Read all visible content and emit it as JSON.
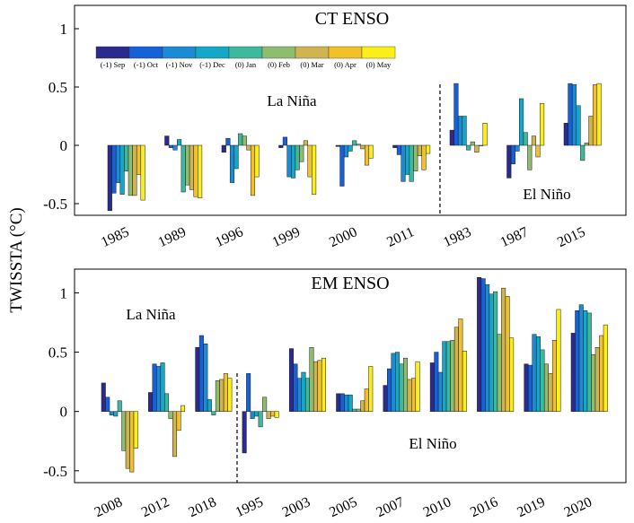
{
  "ylabel": "TWISSTA (°C)",
  "legend": {
    "labels": [
      "(-1) Sep",
      "(-1) Oct",
      "(-1) Nov",
      "(-1) Dec",
      "(0) Jan",
      "(0) Feb",
      "(0) Mar",
      "(0) Apr",
      "(0) May"
    ]
  },
  "colors": [
    "#2b2a8e",
    "#1660d8",
    "#1b8bd6",
    "#13a8c8",
    "#3fb99e",
    "#8fbd6e",
    "#d0b452",
    "#f2c12a",
    "#fbef1a"
  ],
  "chart_data": [
    {
      "type": "bar",
      "title": "CT ENSO",
      "ylabel": "TWISSTA (°C)",
      "ylim": [
        -0.6,
        1.2
      ],
      "yticks": [
        -0.5,
        0,
        0.5,
        1
      ],
      "ytick_labels": [
        "-0.5",
        "0",
        "0.5",
        "1"
      ],
      "categories": [
        "1985",
        "1989",
        "1996",
        "1999",
        "2000",
        "2011",
        "1983",
        "1987",
        "2015"
      ],
      "annotations": [
        "La Niña",
        "El Niño"
      ],
      "divider_after_index": 5,
      "grid": false,
      "legend_position": "top",
      "series": [
        {
          "name": "(-1) Sep",
          "values": [
            -0.56,
            0.08,
            -0.06,
            -0.02,
            -0.01,
            -0.02,
            0.13,
            -0.28,
            0.19
          ]
        },
        {
          "name": "(-1) Oct",
          "values": [
            -0.41,
            -0.02,
            0.06,
            0.07,
            -0.35,
            -0.08,
            0.53,
            -0.16,
            0.53
          ]
        },
        {
          "name": "(-1) Nov",
          "values": [
            -0.32,
            -0.04,
            -0.32,
            -0.27,
            -0.1,
            -0.31,
            0.25,
            -0.05,
            0.52
          ]
        },
        {
          "name": "(-1) Dec",
          "values": [
            -0.42,
            0.05,
            -0.2,
            -0.28,
            -0.05,
            -0.25,
            0.25,
            0.4,
            0.34
          ]
        },
        {
          "name": "(0) Jan",
          "values": [
            -0.22,
            -0.4,
            0.1,
            -0.21,
            0.04,
            -0.31,
            -0.04,
            0.11,
            -0.13
          ]
        },
        {
          "name": "(0) Feb",
          "values": [
            -0.43,
            -0.34,
            0.08,
            -0.14,
            0.01,
            -0.22,
            0.03,
            -0.21,
            0.02
          ]
        },
        {
          "name": "(0) Mar",
          "values": [
            -0.43,
            -0.38,
            -0.04,
            0.04,
            -0.03,
            -0.09,
            -0.06,
            0.08,
            0.25
          ]
        },
        {
          "name": "(0) Apr",
          "values": [
            -0.25,
            -0.44,
            -0.43,
            -0.27,
            -0.17,
            -0.21,
            0.0,
            -0.1,
            0.52
          ]
        },
        {
          "name": "(0) May",
          "values": [
            -0.47,
            -0.45,
            -0.27,
            -0.42,
            -0.11,
            -0.07,
            0.19,
            0.36,
            0.53
          ]
        }
      ]
    },
    {
      "type": "bar",
      "title": "EM ENSO",
      "ylim": [
        -0.6,
        1.2
      ],
      "yticks": [
        -0.5,
        0,
        0.5,
        1
      ],
      "ytick_labels": [
        "-0.5",
        "0",
        "0.5",
        "1"
      ],
      "categories": [
        "2008",
        "2012",
        "2018",
        "1995",
        "2003",
        "2005",
        "2007",
        "2010",
        "2016",
        "2019",
        "2020"
      ],
      "annotations": [
        "La Niña",
        "El Niño"
      ],
      "divider_after_index": 2,
      "grid": false,
      "series": [
        {
          "name": "(-1) Sep",
          "values": [
            0.24,
            0.16,
            0.54,
            -0.35,
            0.53,
            0.15,
            0.22,
            0.41,
            1.13,
            0.4,
            0.66
          ]
        },
        {
          "name": "(-1) Oct",
          "values": [
            0.12,
            0.4,
            0.64,
            0.32,
            0.4,
            0.15,
            0.36,
            0.5,
            1.12,
            0.39,
            0.85
          ]
        },
        {
          "name": "(-1) Nov",
          "values": [
            -0.03,
            0.38,
            0.57,
            -0.06,
            0.28,
            0.14,
            0.49,
            0.33,
            1.07,
            0.65,
            0.9
          ]
        },
        {
          "name": "(-1) Dec",
          "values": [
            -0.04,
            0.41,
            0.1,
            -0.04,
            0.33,
            0.14,
            0.5,
            0.59,
            0.99,
            0.63,
            0.85
          ]
        },
        {
          "name": "(0) Jan",
          "values": [
            0.09,
            0.15,
            -0.03,
            -0.13,
            0.28,
            0.02,
            0.4,
            0.59,
            1.01,
            0.52,
            0.83
          ]
        },
        {
          "name": "(0) Feb",
          "values": [
            -0.33,
            -0.06,
            0.26,
            0.12,
            0.54,
            0.02,
            0.45,
            0.6,
            0.65,
            0.4,
            0.48
          ]
        },
        {
          "name": "(0) Mar",
          "values": [
            -0.48,
            -0.38,
            0.27,
            -0.06,
            0.42,
            0.09,
            0.27,
            0.71,
            1.04,
            0.32,
            0.54
          ]
        },
        {
          "name": "(0) Apr",
          "values": [
            -0.51,
            -0.16,
            0.32,
            -0.04,
            0.43,
            0.19,
            0.28,
            0.78,
            0.97,
            0.6,
            0.64
          ]
        },
        {
          "name": "(0) May",
          "values": [
            -0.31,
            0.05,
            0.28,
            -0.05,
            0.45,
            0.38,
            0.42,
            0.51,
            0.62,
            0.86,
            0.73
          ]
        }
      ]
    }
  ]
}
